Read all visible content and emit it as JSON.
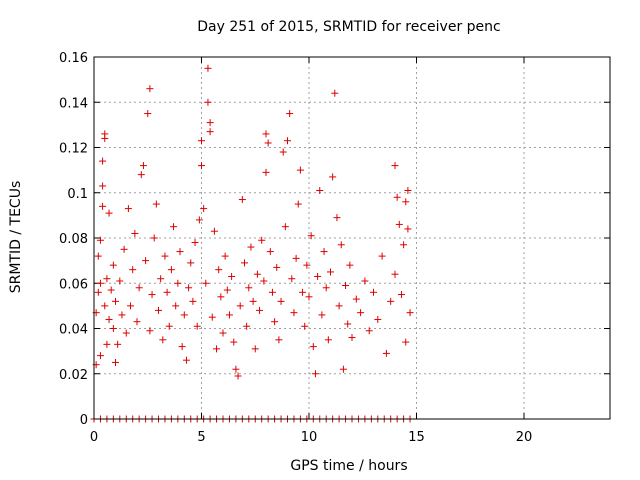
{
  "chart_data": {
    "type": "scatter",
    "title": "Day 251 of 2015, SRMTID for receiver penc",
    "xlabel": "GPS time / hours",
    "ylabel": "SRMTID / TECUs",
    "xlim": [
      0,
      24
    ],
    "ylim": [
      0,
      0.16
    ],
    "xticks": [
      0,
      5,
      10,
      15,
      20
    ],
    "xtick_labels": [
      "0",
      "5",
      "10",
      "15",
      "20"
    ],
    "yticks": [
      0,
      0.02,
      0.04,
      0.06,
      0.08,
      0.1,
      0.12,
      0.14,
      0.16
    ],
    "ytick_labels": [
      "0",
      "0.02",
      "0.04",
      "0.06",
      "0.08",
      "0.1",
      "0.12",
      "0.14",
      "0.16"
    ],
    "grid": true,
    "marker": "+",
    "color": "#dd0000",
    "series": [
      {
        "name": "SRMTID penc",
        "note": "about 1000 scattered plus markers between hour 0 and hour 14.7, mostly between 0.02 and 0.10 TECU, plus a dense row of zero values along the x axis",
        "points": [
          [
            0.1,
            0.024
          ],
          [
            0.1,
            0.047
          ],
          [
            0.2,
            0.056
          ],
          [
            0.2,
            0.072
          ],
          [
            0.3,
            0.028
          ],
          [
            0.3,
            0.06
          ],
          [
            0.3,
            0.079
          ],
          [
            0.4,
            0.094
          ],
          [
            0.4,
            0.114
          ],
          [
            0.4,
            0.103
          ],
          [
            0.5,
            0.124
          ],
          [
            0.5,
            0.126
          ],
          [
            0.5,
            0.05
          ],
          [
            0.6,
            0.062
          ],
          [
            0.6,
            0.033
          ],
          [
            0.7,
            0.091
          ],
          [
            0.7,
            0.044
          ],
          [
            0.8,
            0.057
          ],
          [
            0.9,
            0.068
          ],
          [
            0.9,
            0.04
          ],
          [
            1.0,
            0.025
          ],
          [
            1.0,
            0.052
          ],
          [
            1.1,
            0.033
          ],
          [
            1.2,
            0.061
          ],
          [
            1.3,
            0.046
          ],
          [
            1.4,
            0.075
          ],
          [
            1.5,
            0.038
          ],
          [
            1.6,
            0.093
          ],
          [
            1.7,
            0.05
          ],
          [
            1.8,
            0.066
          ],
          [
            1.9,
            0.082
          ],
          [
            2.0,
            0.043
          ],
          [
            2.1,
            0.058
          ],
          [
            2.2,
            0.108
          ],
          [
            2.3,
            0.112
          ],
          [
            2.4,
            0.07
          ],
          [
            2.5,
            0.135
          ],
          [
            2.6,
            0.146
          ],
          [
            2.6,
            0.039
          ],
          [
            2.7,
            0.055
          ],
          [
            2.8,
            0.08
          ],
          [
            2.9,
            0.095
          ],
          [
            3.0,
            0.048
          ],
          [
            3.1,
            0.062
          ],
          [
            3.2,
            0.035
          ],
          [
            3.3,
            0.072
          ],
          [
            3.4,
            0.056
          ],
          [
            3.5,
            0.041
          ],
          [
            3.6,
            0.066
          ],
          [
            3.7,
            0.085
          ],
          [
            3.8,
            0.05
          ],
          [
            3.9,
            0.06
          ],
          [
            4.0,
            0.074
          ],
          [
            4.1,
            0.032
          ],
          [
            4.2,
            0.046
          ],
          [
            4.3,
            0.026
          ],
          [
            4.4,
            0.058
          ],
          [
            4.5,
            0.069
          ],
          [
            4.6,
            0.052
          ],
          [
            4.7,
            0.078
          ],
          [
            4.8,
            0.041
          ],
          [
            4.9,
            0.088
          ],
          [
            5.0,
            0.112
          ],
          [
            5.0,
            0.123
          ],
          [
            5.1,
            0.093
          ],
          [
            5.2,
            0.06
          ],
          [
            5.3,
            0.155
          ],
          [
            5.3,
            0.14
          ],
          [
            5.4,
            0.131
          ],
          [
            5.4,
            0.127
          ],
          [
            5.5,
            0.045
          ],
          [
            5.6,
            0.083
          ],
          [
            5.7,
            0.031
          ],
          [
            5.8,
            0.066
          ],
          [
            5.9,
            0.054
          ],
          [
            6.0,
            0.038
          ],
          [
            6.1,
            0.072
          ],
          [
            6.2,
            0.057
          ],
          [
            6.3,
            0.046
          ],
          [
            6.4,
            0.063
          ],
          [
            6.5,
            0.034
          ],
          [
            6.6,
            0.022
          ],
          [
            6.7,
            0.019
          ],
          [
            6.8,
            0.05
          ],
          [
            6.9,
            0.097
          ],
          [
            7.0,
            0.069
          ],
          [
            7.1,
            0.041
          ],
          [
            7.2,
            0.058
          ],
          [
            7.3,
            0.076
          ],
          [
            7.4,
            0.052
          ],
          [
            7.5,
            0.031
          ],
          [
            7.6,
            0.064
          ],
          [
            7.7,
            0.048
          ],
          [
            7.8,
            0.079
          ],
          [
            7.9,
            0.061
          ],
          [
            8.0,
            0.109
          ],
          [
            8.0,
            0.126
          ],
          [
            8.1,
            0.122
          ],
          [
            8.2,
            0.074
          ],
          [
            8.3,
            0.056
          ],
          [
            8.4,
            0.043
          ],
          [
            8.5,
            0.067
          ],
          [
            8.6,
            0.035
          ],
          [
            8.7,
            0.052
          ],
          [
            8.8,
            0.118
          ],
          [
            8.9,
            0.085
          ],
          [
            9.0,
            0.123
          ],
          [
            9.1,
            0.135
          ],
          [
            9.2,
            0.062
          ],
          [
            9.3,
            0.047
          ],
          [
            9.4,
            0.071
          ],
          [
            9.5,
            0.095
          ],
          [
            9.6,
            0.11
          ],
          [
            9.7,
            0.056
          ],
          [
            9.8,
            0.041
          ],
          [
            9.9,
            0.068
          ],
          [
            10.0,
            0.054
          ],
          [
            10.1,
            0.081
          ],
          [
            10.2,
            0.032
          ],
          [
            10.3,
            0.02
          ],
          [
            10.4,
            0.063
          ],
          [
            10.5,
            0.101
          ],
          [
            10.6,
            0.046
          ],
          [
            10.7,
            0.074
          ],
          [
            10.8,
            0.058
          ],
          [
            10.9,
            0.035
          ],
          [
            11.0,
            0.065
          ],
          [
            11.1,
            0.107
          ],
          [
            11.2,
            0.144
          ],
          [
            11.3,
            0.089
          ],
          [
            11.4,
            0.05
          ],
          [
            11.5,
            0.077
          ],
          [
            11.6,
            0.022
          ],
          [
            11.7,
            0.059
          ],
          [
            11.8,
            0.042
          ],
          [
            11.9,
            0.068
          ],
          [
            12.0,
            0.036
          ],
          [
            12.2,
            0.053
          ],
          [
            12.4,
            0.047
          ],
          [
            12.6,
            0.061
          ],
          [
            12.8,
            0.039
          ],
          [
            13.0,
            0.056
          ],
          [
            13.2,
            0.044
          ],
          [
            13.4,
            0.072
          ],
          [
            13.6,
            0.029
          ],
          [
            13.8,
            0.052
          ],
          [
            14.0,
            0.112
          ],
          [
            14.0,
            0.064
          ],
          [
            14.1,
            0.098
          ],
          [
            14.2,
            0.086
          ],
          [
            14.3,
            0.055
          ],
          [
            14.4,
            0.077
          ],
          [
            14.5,
            0.096
          ],
          [
            14.5,
            0.034
          ],
          [
            14.6,
            0.101
          ],
          [
            14.6,
            0.084
          ],
          [
            14.7,
            0.047
          ]
        ],
        "zero_points_hours": [
          0,
          0.3,
          0.6,
          0.9,
          1.2,
          1.5,
          1.8,
          2.1,
          2.4,
          2.7,
          3.0,
          3.3,
          3.6,
          3.9,
          4.2,
          4.5,
          4.8,
          5.1,
          5.4,
          5.7,
          6.0,
          6.3,
          6.6,
          6.9,
          7.2,
          7.5,
          7.8,
          8.1,
          8.4,
          8.7,
          9.0,
          9.3,
          9.6,
          9.9,
          10.2,
          10.5,
          10.8,
          11.1,
          11.4,
          11.7,
          12.0,
          12.3,
          12.6,
          12.9,
          13.2,
          13.5,
          13.8,
          14.1,
          14.4,
          14.7
        ]
      }
    ]
  }
}
